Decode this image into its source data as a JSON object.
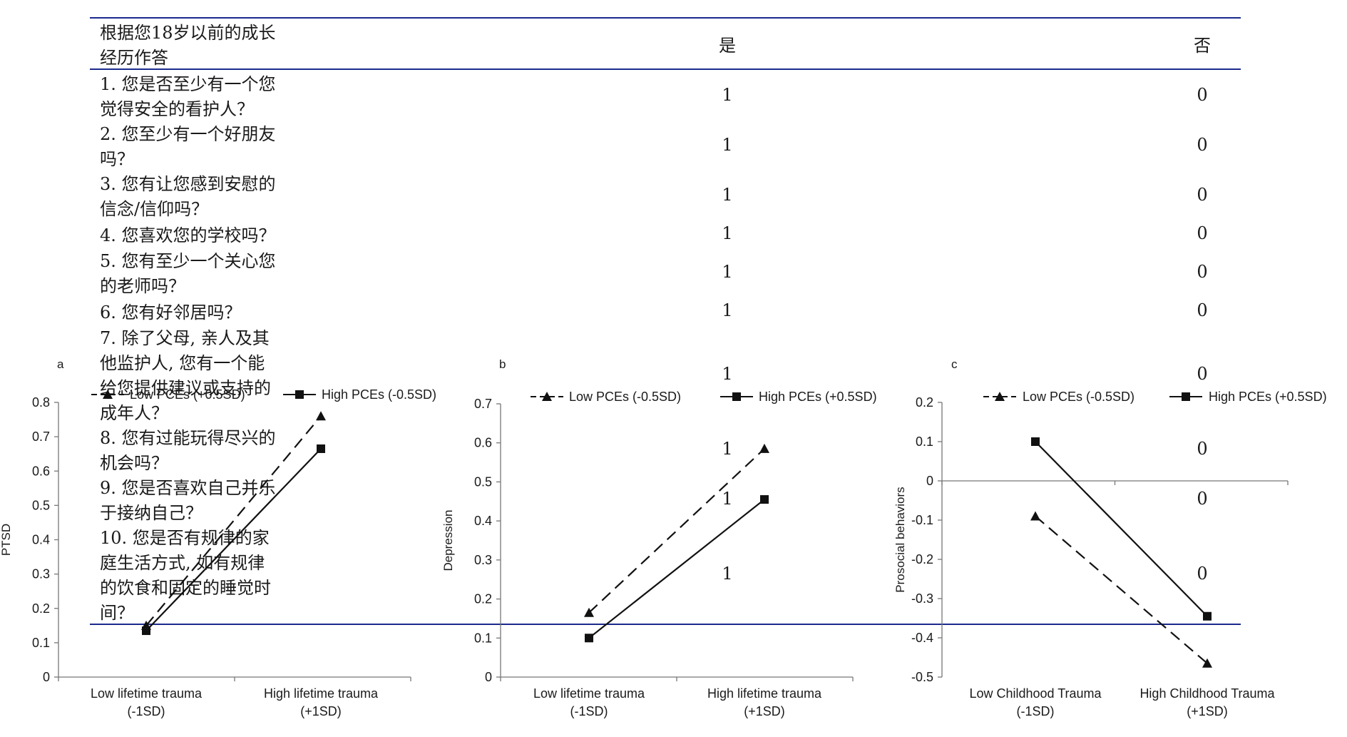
{
  "table": {
    "header": {
      "question": "根据您18岁以前的成长经历作答",
      "yes": "是",
      "no": "否"
    },
    "rows": [
      {
        "q": "1. 您是否至少有一个您觉得安全的看护人？",
        "yes": "1",
        "no": "0"
      },
      {
        "q": "2. 您至少有一个好朋友吗？",
        "yes": "1",
        "no": "0"
      },
      {
        "q": "3. 您有让您感到安慰的信念/信仰吗？",
        "yes": "1",
        "no": "0"
      },
      {
        "q": "4. 您喜欢您的学校吗？",
        "yes": "1",
        "no": "0"
      },
      {
        "q": "5. 您有至少一个关心您的老师吗？",
        "yes": "1",
        "no": "0"
      },
      {
        "q": "6. 您有好邻居吗？",
        "yes": "1",
        "no": "0"
      },
      {
        "q": "7. 除了父母, 亲人及其他监护人, 您有一个能给您提供建议或支持的成年人？",
        "yes": "1",
        "no": "0"
      },
      {
        "q": "8. 您有过能玩得尽兴的机会吗？",
        "yes": "1",
        "no": "0"
      },
      {
        "q": "9. 您是否喜欢自己并乐于接纳自己？",
        "yes": "1",
        "no": "0"
      },
      {
        "q": "10. 您是否有规律的家庭生活方式, 如有规律的饮食和固定的睡觉时间？",
        "yes": "1",
        "no": "0"
      }
    ]
  },
  "colors": {
    "table_rule": "#1b2a8c",
    "ink": "#1a1a1a"
  },
  "chart_data": [
    {
      "type": "line",
      "panel_label": "a",
      "ylabel": "PTSD",
      "categories": [
        "Low lifetime trauma\n(-1SD)",
        "High lifetime trauma\n(+1SD)"
      ],
      "ylim": [
        0,
        0.8
      ],
      "yticks": [
        0,
        0.1,
        0.2,
        0.3,
        0.4,
        0.5,
        0.6,
        0.7,
        0.8
      ],
      "ytick_labels": [
        "0",
        "0.1",
        "0.2",
        "0.3",
        "0.4",
        "0.5",
        "0.6",
        "0.7",
        "0.8"
      ],
      "legend_position": "top",
      "series": [
        {
          "name": "Low PCEs (+0.5SD)",
          "marker": "triangle",
          "line": "dashed",
          "values": [
            0.15,
            0.76
          ]
        },
        {
          "name": "High PCEs (-0.5SD)",
          "marker": "square",
          "line": "solid",
          "values": [
            0.135,
            0.665
          ]
        }
      ]
    },
    {
      "type": "line",
      "panel_label": "b",
      "ylabel": "Depression",
      "categories": [
        "Low lifetime trauma\n(-1SD)",
        "High lifetime trauma\n(+1SD)"
      ],
      "ylim": [
        0,
        0.7
      ],
      "yticks": [
        0,
        0.1,
        0.2,
        0.3,
        0.4,
        0.5,
        0.6,
        0.7
      ],
      "ytick_labels": [
        "0",
        "0.1",
        "0.2",
        "0.3",
        "0.4",
        "0.5",
        "0.6",
        "0.7"
      ],
      "legend_position": "top",
      "series": [
        {
          "name": "Low PCEs (-0.5SD)",
          "marker": "triangle",
          "line": "dashed",
          "values": [
            0.165,
            0.585
          ]
        },
        {
          "name": "High PCEs (+0.5SD)",
          "marker": "square",
          "line": "solid",
          "values": [
            0.1,
            0.455
          ]
        }
      ]
    },
    {
      "type": "line",
      "panel_label": "c",
      "ylabel": "Prosocial behaviors",
      "categories": [
        "Low Childhood Trauma\n(-1SD)",
        "High Childhood Trauma\n(+1SD)"
      ],
      "ylim": [
        -0.5,
        0.2
      ],
      "yticks": [
        -0.5,
        -0.4,
        -0.3,
        -0.2,
        -0.1,
        0,
        0.1,
        0.2
      ],
      "ytick_labels": [
        "-0.5",
        "-0.4",
        "-0.3",
        "-0.2",
        "-0.1",
        "0",
        "0.1",
        "0.2"
      ],
      "legend_position": "top",
      "series": [
        {
          "name": "Low PCEs (-0.5SD)",
          "marker": "triangle",
          "line": "dashed",
          "values": [
            -0.09,
            -0.465
          ]
        },
        {
          "name": "High PCEs (+0.5SD)",
          "marker": "square",
          "line": "solid",
          "values": [
            0.1,
            -0.345
          ]
        }
      ]
    }
  ]
}
